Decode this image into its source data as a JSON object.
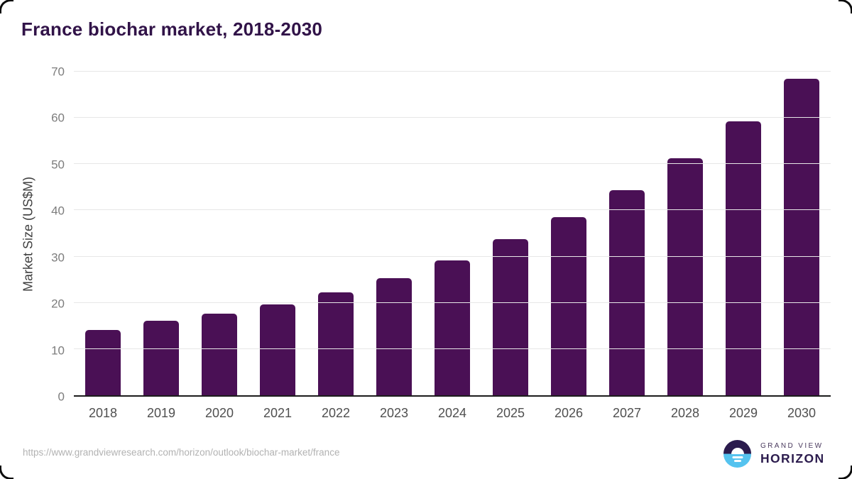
{
  "chart_data": {
    "type": "bar",
    "title": "France biochar market, 2018-2030",
    "xlabel": "",
    "ylabel": "Market Size (US$M)",
    "categories": [
      "2018",
      "2019",
      "2020",
      "2021",
      "2022",
      "2023",
      "2024",
      "2025",
      "2026",
      "2027",
      "2028",
      "2029",
      "2030"
    ],
    "values": [
      14.2,
      16.1,
      17.7,
      19.7,
      22.3,
      25.3,
      29.2,
      33.7,
      38.6,
      44.3,
      51.2,
      59.2,
      68.5
    ],
    "ylim": [
      0,
      70
    ],
    "yticks": [
      0,
      10,
      20,
      30,
      40,
      50,
      60,
      70
    ],
    "grid": true,
    "legend": "none",
    "bar_color": "#4a1055"
  },
  "footer": {
    "source_url": "https://www.grandviewresearch.com/horizon/outlook/biochar-market/france",
    "brand_top": "GRAND VIEW",
    "brand_bottom": "HORIZON"
  },
  "colors": {
    "bar": "#4a1055",
    "title_text": "#311348",
    "axis_line": "#1c1c1c",
    "gridline": "#e7e7e7",
    "y_tick_text": "#7d7d7d",
    "x_tick_text": "#4f4f4f",
    "axis_title_text": "#3f3f3f",
    "url_text": "#b2b2b2",
    "logo_purple": "#2b1b4d",
    "logo_blue": "#55c3ef"
  }
}
